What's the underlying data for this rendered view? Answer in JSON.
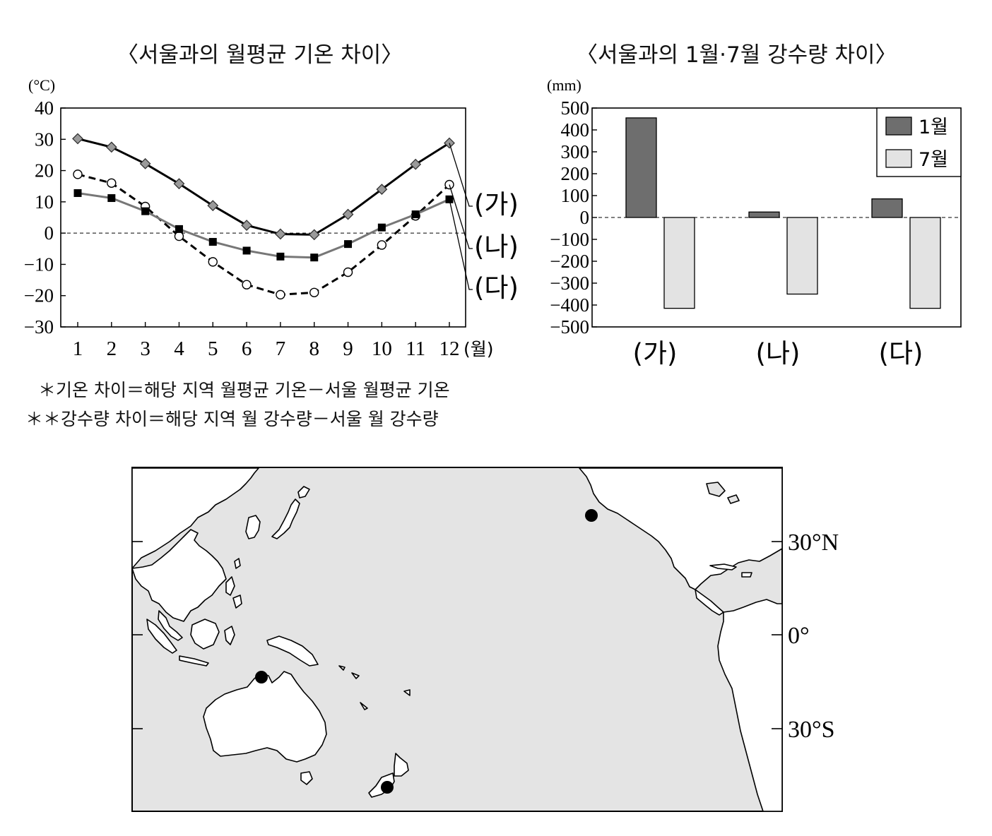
{
  "chart_data": [
    {
      "type": "line",
      "title": "〈서울과의 월평균 기온 차이〉",
      "ylabel": "(°C)",
      "xunit": "(월)",
      "ylim": [
        -30,
        40
      ],
      "yticks": [
        40,
        30,
        20,
        10,
        0,
        -10,
        -20,
        -30
      ],
      "categories": [
        "1",
        "2",
        "3",
        "4",
        "5",
        "6",
        "7",
        "8",
        "9",
        "10",
        "11",
        "12"
      ],
      "series": [
        {
          "name": "(가)",
          "marker": "diamond",
          "line": "solid",
          "color": "#000000",
          "values": [
            30.2,
            27.5,
            22.2,
            15.8,
            8.8,
            2.5,
            -0.3,
            -0.5,
            6.0,
            14.0,
            22.0,
            28.8
          ]
        },
        {
          "name": "(나)",
          "marker": "circle",
          "line": "dashed",
          "color": "#000000",
          "values": [
            18.8,
            16.0,
            8.5,
            -1.0,
            -9.2,
            -16.5,
            -19.7,
            -19.0,
            -12.5,
            -3.8,
            5.5,
            15.5
          ]
        },
        {
          "name": "(다)",
          "marker": "square",
          "line": "solid",
          "color": "#777777",
          "values": [
            12.8,
            11.2,
            7.0,
            1.3,
            -2.8,
            -5.6,
            -7.5,
            -7.8,
            -3.5,
            1.8,
            6.0,
            10.8
          ]
        }
      ]
    },
    {
      "type": "bar",
      "title": "〈서울과의 1월·7월 강수량 차이〉",
      "ylabel": "(mm)",
      "ylim": [
        -500,
        500
      ],
      "yticks": [
        500,
        400,
        300,
        200,
        100,
        0,
        -100,
        -200,
        -300,
        -400,
        -500
      ],
      "categories": [
        "(가)",
        "(나)",
        "(다)"
      ],
      "legend_position": "top-right",
      "series": [
        {
          "name": "1월",
          "color": "#6e6e6e",
          "values": [
            455,
            25,
            85
          ]
        },
        {
          "name": "7월",
          "color": "#e3e3e3",
          "values": [
            -415,
            -350,
            -415
          ]
        }
      ]
    }
  ],
  "notes": [
    "＊기온 차이＝해당 지역 월평균 기온－서울 월평균 기온",
    "＊＊강수량 차이＝해당 지역 월 강수량－서울 월 강수량"
  ],
  "map": {
    "lat_labels": [
      "30°N",
      "0°",
      "30°S"
    ],
    "colors": {
      "ocean": "#e4e4e4",
      "land": "#ffffff",
      "stroke": "#000000"
    },
    "markers": [
      "california-point",
      "darwin-point",
      "dunedin-point"
    ]
  }
}
